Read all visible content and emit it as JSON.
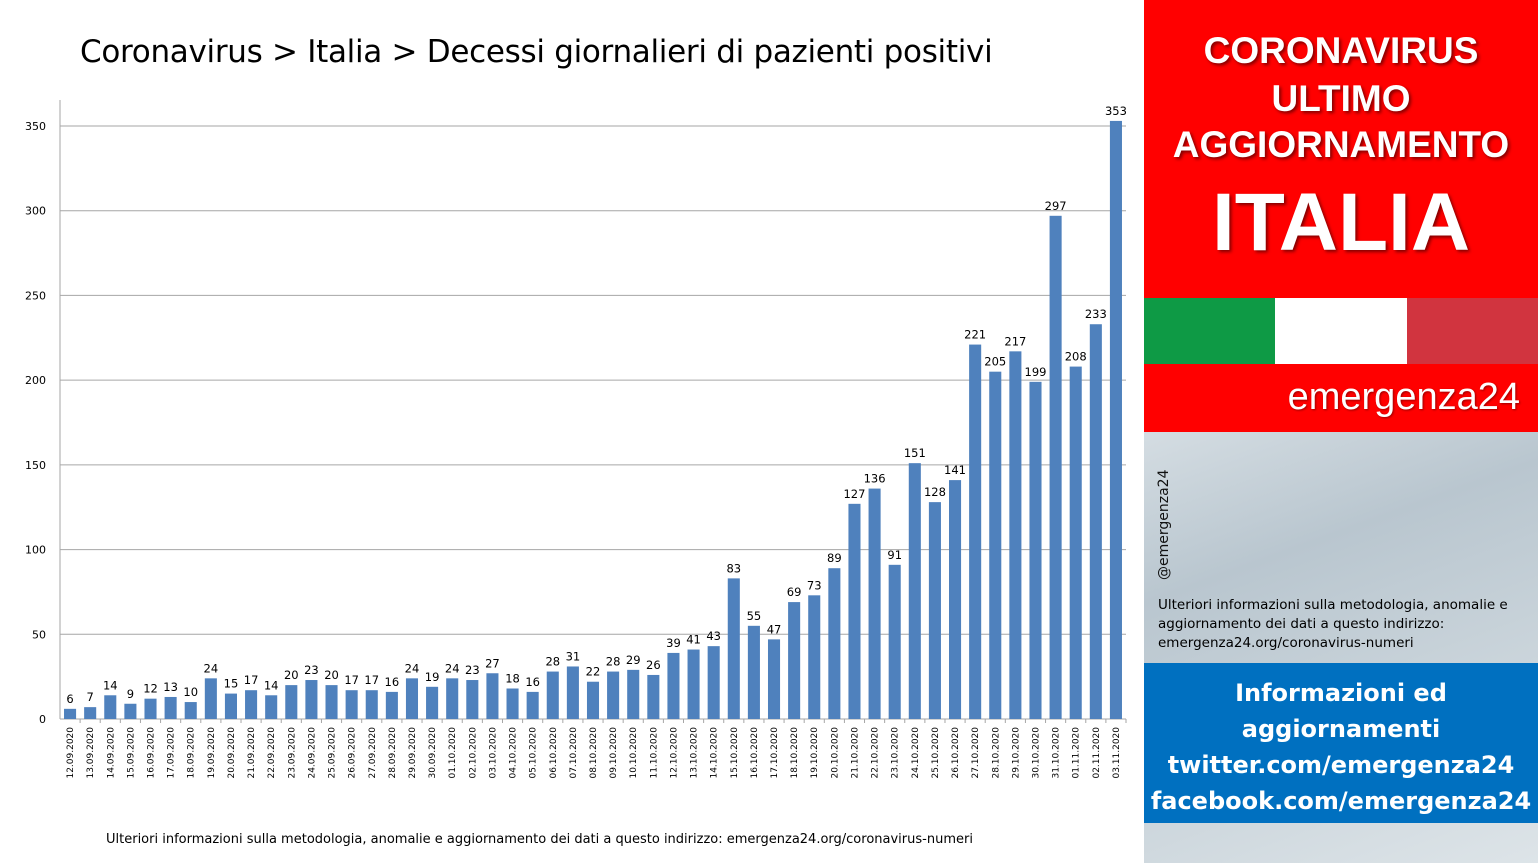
{
  "title": "Coronavirus > Italia > Decessi giornalieri di pazienti positivi",
  "footer_note": "Ulteriori informazioni sulla metodologia, anomalie e aggiornamento dei dati a questo indirizzo: emergenza24.org/coronavirus-numeri",
  "side": {
    "header_line1": "CORONAVIRUS",
    "header_line2": "ULTIMO",
    "header_line3": "AGGIORNAMENTO",
    "header_line4": "ITALIA",
    "brand": "emergenza24",
    "handle": "@emergenza24",
    "info": "Ulteriori informazioni sulla metodologia, anomalie e aggiornamento dei dati a questo indirizzo: emergenza24.org/coronavirus-numeri",
    "links": [
      "Informazioni ed",
      "aggiornamenti",
      "twitter.com/emergenza24",
      "facebook.com/emergenza24"
    ]
  },
  "colors": {
    "bar": "#4f81bd",
    "grid": "#a6a6a6",
    "red": "#ff0000",
    "flag_green": "#0e9a45",
    "flag_white": "#ffffff",
    "flag_red": "#d1343f",
    "blue_box": "#0070c0"
  },
  "chart_data": {
    "type": "bar",
    "title": "Coronavirus > Italia > Decessi giornalieri di pazienti positivi",
    "xlabel": "",
    "ylabel": "",
    "ylim": [
      0,
      350
    ],
    "yticks": [
      0,
      50,
      100,
      150,
      200,
      250,
      300,
      350
    ],
    "grid": true,
    "legend": "none",
    "categories": [
      "12.09.2020",
      "13.09.2020",
      "14.09.2020",
      "15.09.2020",
      "16.09.2020",
      "17.09.2020",
      "18.09.2020",
      "19.09.2020",
      "20.09.2020",
      "21.09.2020",
      "22.09.2020",
      "23.09.2020",
      "24.09.2020",
      "25.09.2020",
      "26.09.2020",
      "27.09.2020",
      "28.09.2020",
      "29.09.2020",
      "30.09.2020",
      "01.10.2020",
      "02.10.2020",
      "03.10.2020",
      "04.10.2020",
      "05.10.2020",
      "06.10.2020",
      "07.10.2020",
      "08.10.2020",
      "09.10.2020",
      "10.10.2020",
      "11.10.2020",
      "12.10.2020",
      "13.10.2020",
      "14.10.2020",
      "15.10.2020",
      "16.10.2020",
      "17.10.2020",
      "18.10.2020",
      "19.10.2020",
      "20.10.2020",
      "21.10.2020",
      "22.10.2020",
      "23.10.2020",
      "24.10.2020",
      "25.10.2020",
      "26.10.2020",
      "27.10.2020",
      "28.10.2020",
      "29.10.2020",
      "30.10.2020",
      "31.10.2020",
      "01.11.2020",
      "02.11.2020",
      "03.11.2020"
    ],
    "values": [
      6,
      7,
      14,
      9,
      12,
      13,
      10,
      24,
      15,
      17,
      14,
      20,
      23,
      20,
      17,
      17,
      16,
      24,
      19,
      24,
      23,
      27,
      18,
      16,
      28,
      31,
      22,
      28,
      29,
      26,
      39,
      41,
      43,
      83,
      55,
      47,
      69,
      73,
      89,
      127,
      136,
      91,
      151,
      128,
      141,
      221,
      205,
      217,
      199,
      297,
      208,
      233,
      353
    ]
  }
}
